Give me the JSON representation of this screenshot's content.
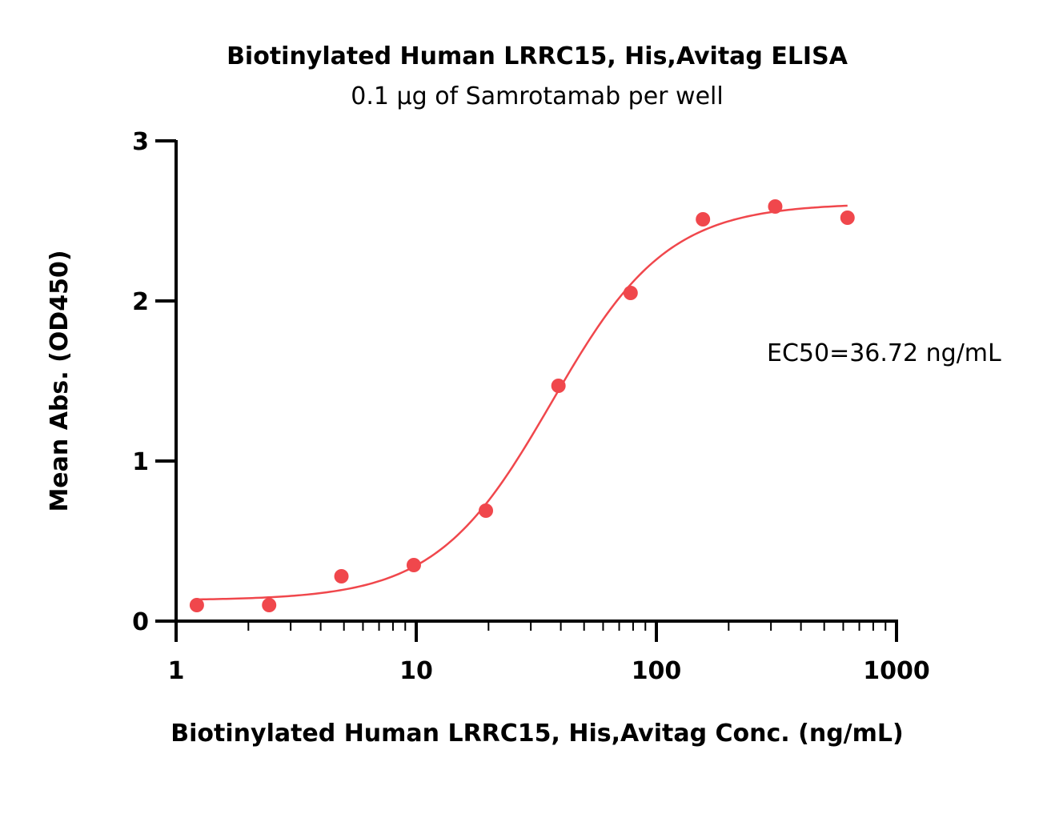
{
  "chart_data": {
    "type": "scatter",
    "title": "Biotinylated Human LRRC15, His,Avitag ELISA",
    "subtitle": "0.1 µg of Samrotamab per well",
    "xlabel": "Biotinylated Human LRRC15, His,Avitag Conc. (ng/mL)",
    "ylabel": "Mean Abs. (OD450)",
    "x_scale": "log",
    "xlim": [
      1,
      1000
    ],
    "ylim": [
      0,
      3
    ],
    "x_ticks": [
      "1",
      "10",
      "100",
      "1000"
    ],
    "x_tick_values": [
      1,
      10,
      100,
      1000
    ],
    "y_ticks": [
      "0",
      "1",
      "2",
      "3"
    ],
    "y_tick_values": [
      0,
      1,
      2,
      3
    ],
    "grid": false,
    "annotation": "EC50=36.72 ng/mL",
    "colors": {
      "series": "#f0474c",
      "axis": "#000000"
    },
    "series": [
      {
        "x": [
          1.22,
          2.44,
          4.88,
          9.77,
          19.5,
          39.1,
          78.1,
          156.3,
          312.5,
          625
        ],
        "y": [
          0.1,
          0.1,
          0.28,
          0.35,
          0.69,
          1.47,
          2.05,
          2.51,
          2.59,
          2.52
        ],
        "fit": {
          "model": "4PL",
          "bottom": 0.13,
          "top": 2.61,
          "ec50": 36.72,
          "hill": 1.8
        }
      }
    ]
  }
}
